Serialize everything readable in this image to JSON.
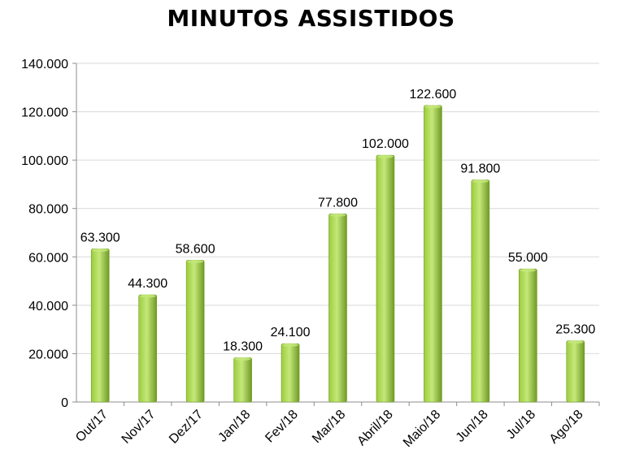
{
  "colors": {
    "bar_light": "#c4e87a",
    "bar_mid": "#9ccc3c",
    "bar_dark": "#6f9a24",
    "grid": "#d9d9d9",
    "axis": "#8c8c8c"
  },
  "chart_data": {
    "type": "bar",
    "title": "MINUTOS ASSISTIDOS",
    "xlabel": "",
    "ylabel": "",
    "ylim": [
      0,
      140000
    ],
    "yticks": [
      0,
      20000,
      40000,
      60000,
      80000,
      100000,
      120000,
      140000
    ],
    "ytick_labels": [
      "0",
      "20.000",
      "40.000",
      "60.000",
      "80.000",
      "100.000",
      "120.000",
      "140.000"
    ],
    "grid": true,
    "categories": [
      "Out/17",
      "Nov/17",
      "Dez/17",
      "Jan/18",
      "Fev/18",
      "Mar/18",
      "Abril/18",
      "Maio/18",
      "Jun/18",
      "Jul/18",
      "Ago/18"
    ],
    "values": [
      63300,
      44300,
      58600,
      18300,
      24100,
      77800,
      102000,
      122600,
      91800,
      55000,
      25300
    ],
    "value_labels": [
      "63.300",
      "44.300",
      "58.600",
      "18.300",
      "24.100",
      "77.800",
      "102.000",
      "122.600",
      "91.800",
      "55.000",
      "25.300"
    ]
  }
}
